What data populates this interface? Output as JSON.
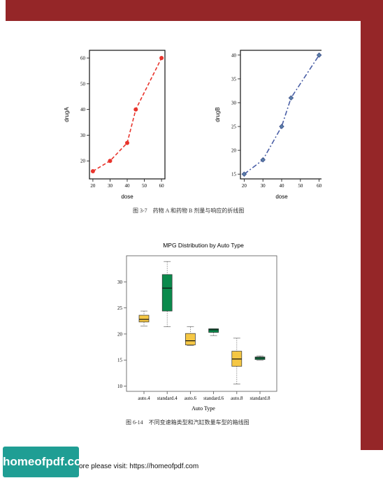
{
  "chart_data": [
    {
      "type": "line",
      "xlabel": "dose",
      "ylabel": "drugA",
      "x": [
        20,
        30,
        40,
        45,
        60
      ],
      "series": [
        {
          "values": [
            16,
            20,
            27,
            40,
            60
          ],
          "color": "#e8342c",
          "line_style": "dashed",
          "marker": "circle"
        }
      ],
      "xticks": [
        "20",
        "30",
        "40",
        "50",
        "60"
      ],
      "yticks": [
        "20",
        "30",
        "40",
        "50",
        "60"
      ],
      "xlim": [
        18,
        62
      ],
      "ylim": [
        13,
        63
      ]
    },
    {
      "type": "line",
      "xlabel": "dose",
      "ylabel": "drugB",
      "x": [
        20,
        30,
        40,
        45,
        60
      ],
      "series": [
        {
          "values": [
            15,
            18,
            25,
            31,
            40
          ],
          "color": "#4a5fa6",
          "line_style": "dash-dot",
          "marker": "diamond"
        }
      ],
      "xticks": [
        "20",
        "30",
        "40",
        "50",
        "60"
      ],
      "yticks": [
        "15",
        "20",
        "25",
        "30",
        "35",
        "40"
      ],
      "xlim": [
        18,
        62
      ],
      "ylim": [
        14,
        41
      ]
    },
    {
      "type": "box",
      "title": "MPG Distribution by Auto Type",
      "xlabel": "Auto Type",
      "ylabel": "",
      "categories": [
        "auto.4",
        "standard.4",
        "auto.6",
        "standard.6",
        "auto.8",
        "standard.8"
      ],
      "boxes": [
        {
          "min": 21.5,
          "q1": 22.3,
          "median": 22.8,
          "q3": 23.6,
          "max": 24.4,
          "color": "#f5c744"
        },
        {
          "min": 21.4,
          "q1": 24.4,
          "median": 28.8,
          "q3": 31.4,
          "max": 33.9,
          "color": "#0a8a4c"
        },
        {
          "min": 17.8,
          "q1": 17.9,
          "median": 18.7,
          "q3": 20.1,
          "max": 21.4,
          "color": "#f5c744"
        },
        {
          "min": 19.7,
          "q1": 20.3,
          "median": 20.8,
          "q3": 21.0,
          "max": 21.0,
          "color": "#0a8a4c"
        },
        {
          "min": 10.4,
          "q1": 13.8,
          "median": 15.2,
          "q3": 16.7,
          "max": 19.2,
          "color": "#f5c744"
        },
        {
          "min": 15.0,
          "q1": 15.1,
          "median": 15.4,
          "q3": 15.6,
          "max": 15.8,
          "color": "#0a8a4c"
        }
      ],
      "yticks": [
        "10",
        "15",
        "20",
        "25",
        "30"
      ],
      "ylim": [
        9,
        35
      ]
    }
  ],
  "captions": {
    "fig1": "图 3-7　药物 A 和药物 B 剂量与响应的折线图",
    "fig2": "图 6-14　不同变速箱类型和汽缸数量车型的箱线图"
  },
  "brand": {
    "label": "homeofpdf.com",
    "visit": "ore please visit: https://homeofpdf.com"
  },
  "colors": {
    "frame": "#952628",
    "brand_bg": "#1f9e94"
  }
}
